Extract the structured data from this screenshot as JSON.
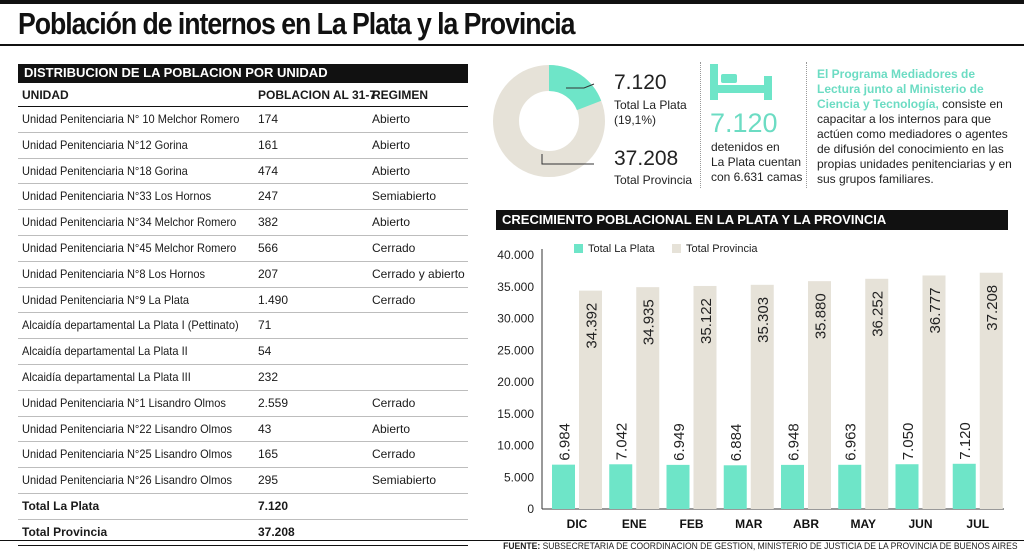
{
  "title": "Población de internos en La Plata y la Provincia",
  "table": {
    "heading": "DISTRIBUCION DE LA POBLACION POR UNIDAD",
    "columns": [
      "UNIDAD",
      "POBLACION AL 31-7",
      "REGIMEN"
    ],
    "rows": [
      [
        "Unidad Penitenciaria N° 10 Melchor Romero",
        "174",
        "Abierto"
      ],
      [
        "Unidad Penitenciaria N°12 Gorina",
        "161",
        "Abierto"
      ],
      [
        "Unidad Penitenciaria N°18 Gorina",
        "474",
        "Abierto"
      ],
      [
        "Unidad Penitenciaria N°33 Los Hornos",
        "247",
        "Semiabierto"
      ],
      [
        "Unidad Penitenciaria N°34 Melchor Romero",
        "382",
        "Abierto"
      ],
      [
        "Unidad Penitenciaria N°45 Melchor Romero",
        "566",
        "Cerrado"
      ],
      [
        "Unidad Penitenciaria N°8 Los Hornos",
        "207",
        "Cerrado y abierto"
      ],
      [
        "Unidad Penitenciaria N°9 La Plata",
        "1.490",
        "Cerrado"
      ],
      [
        "Alcaidía departamental La Plata I (Pettinato)",
        "71",
        ""
      ],
      [
        "Alcaidía departamental La Plata II",
        "54",
        ""
      ],
      [
        "Alcaidía departamental La Plata III",
        "232",
        ""
      ],
      [
        "Unidad Penitenciaria N°1 Lisandro Olmos",
        "2.559",
        "Cerrado"
      ],
      [
        "Unidad Penitenciaria N°22 Lisandro Olmos",
        "43",
        "Abierto"
      ],
      [
        "Unidad Penitenciaria N°25 Lisandro Olmos",
        "165",
        "Cerrado"
      ],
      [
        "Unidad Penitenciaria N°26 Lisandro Olmos",
        "295",
        "Semiabierto"
      ]
    ],
    "totals": [
      [
        "Total La Plata",
        "7.120"
      ],
      [
        "Total Provincia",
        "37.208"
      ]
    ]
  },
  "donut": {
    "la_plata_value": "7.120",
    "la_plata_label": "Total La Plata",
    "la_plata_pct": "(19,1%)",
    "la_plata_fraction": 0.191,
    "provincia_value": "37.208",
    "provincia_label": "Total Provincia"
  },
  "beds": {
    "value": "7.120",
    "line1": "detenidos en",
    "line2": "La Plata cuentan",
    "line3": "con 6.631 camas"
  },
  "program": {
    "highlight": "El Programa Mediadores de Lectura junto al Ministerio de Ciencia y Tecnología,",
    "body": " consiste en capacitar a los internos para que actúen como mediadores o agentes de difusión del conocimiento en las propias unidades penitenciarias y en sus grupos familiares."
  },
  "colors": {
    "la_plata": "#6ee5c8",
    "provincia": "#e6e2d8",
    "accent_text": "#6cdcc3"
  },
  "chart_data": {
    "type": "bar",
    "title": "CRECIMIENTO POBLACIONAL EN LA PLATA Y LA PROVINCIA",
    "categories": [
      "DIC",
      "ENE",
      "FEB",
      "MAR",
      "ABR",
      "MAY",
      "JUN",
      "JUL"
    ],
    "series": [
      {
        "name": "Total La Plata",
        "values": [
          6984,
          7042,
          6949,
          6884,
          6948,
          6963,
          7050,
          7120
        ],
        "labels": [
          "6.984",
          "7.042",
          "6.949",
          "6.884",
          "6.948",
          "6.963",
          "7.050",
          "7.120"
        ]
      },
      {
        "name": "Total Provincia",
        "values": [
          34392,
          34935,
          35122,
          35303,
          35880,
          36252,
          36777,
          37208
        ],
        "labels": [
          "34.392",
          "34.935",
          "35.122",
          "35.303",
          "35.880",
          "36.252",
          "36.777",
          "37.208"
        ]
      }
    ],
    "y_ticks": [
      "0",
      "5.000",
      "10.000",
      "15.000",
      "20.000",
      "25.000",
      "30.000",
      "35.000",
      "40.000"
    ],
    "ylim": [
      0,
      40000
    ],
    "grid": false,
    "legend": "top-left"
  },
  "source": {
    "label": "FUENTE:",
    "text": " SUBSECRETARIA DE COORDINACION DE GESTION, MINISTERIO DE JUSTICIA DE LA PROVINCIA DE BUENOS AIRES"
  }
}
